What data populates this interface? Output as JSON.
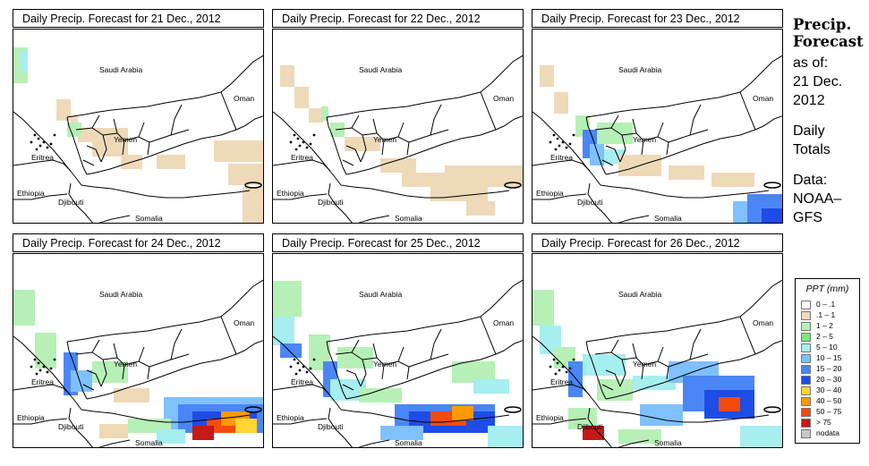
{
  "panels": [
    {
      "title": "Daily Precip. Forecast for  21 Dec., 2012",
      "day": 0
    },
    {
      "title": "Daily Precip. Forecast for  22 Dec., 2012",
      "day": 1
    },
    {
      "title": "Daily Precip. Forecast for  23 Dec., 2012",
      "day": 2
    },
    {
      "title": "Daily Precip. Forecast for  24 Dec., 2012",
      "day": 3
    },
    {
      "title": "Daily Precip. Forecast for  25 Dec., 2012",
      "day": 4
    },
    {
      "title": "Daily Precip. Forecast for  26 Dec., 2012",
      "day": 5
    }
  ],
  "map_labels": {
    "saudi": "Saudi Arabia",
    "oman": "Oman",
    "yemen": "Yemen",
    "eritrea": "Eritrea",
    "ethiopia": "Ethiopia",
    "djibouti": "Djibouti",
    "somalia": "Somalia"
  },
  "side": {
    "title_line1": "Precip.",
    "title_line2": "Forecast",
    "as_of": "as of:",
    "date_line1": "21 Dec.",
    "date_line2": "2012",
    "daily_line1": "Daily",
    "daily_line2": "Totals",
    "data_line1": "Data:",
    "data_line2": "NOAA–",
    "data_line3": "GFS"
  },
  "legend": {
    "title": "PPT (mm)",
    "items": [
      {
        "label": "0 – .1",
        "color": "#ffffff"
      },
      {
        "label": ".1 – 1",
        "color": "#eed9b9"
      },
      {
        "label": "1 – 2",
        "color": "#b6f0b6"
      },
      {
        "label": "2 – 5",
        "color": "#7ce87c"
      },
      {
        "label": "5 – 10",
        "color": "#a6eef0"
      },
      {
        "label": "10 – 15",
        "color": "#7fc0ff"
      },
      {
        "label": "15 – 20",
        "color": "#4a86f5"
      },
      {
        "label": "20 – 30",
        "color": "#1e4ce6"
      },
      {
        "label": "30 – 40",
        "color": "#ffd633"
      },
      {
        "label": "40 – 50",
        "color": "#ff9900"
      },
      {
        "label": "50 – 75",
        "color": "#f24b0d"
      },
      {
        "label": "> 75",
        "color": "#c41a1a"
      },
      {
        "label": "nodata",
        "color": "#c8c8c8"
      }
    ]
  }
}
